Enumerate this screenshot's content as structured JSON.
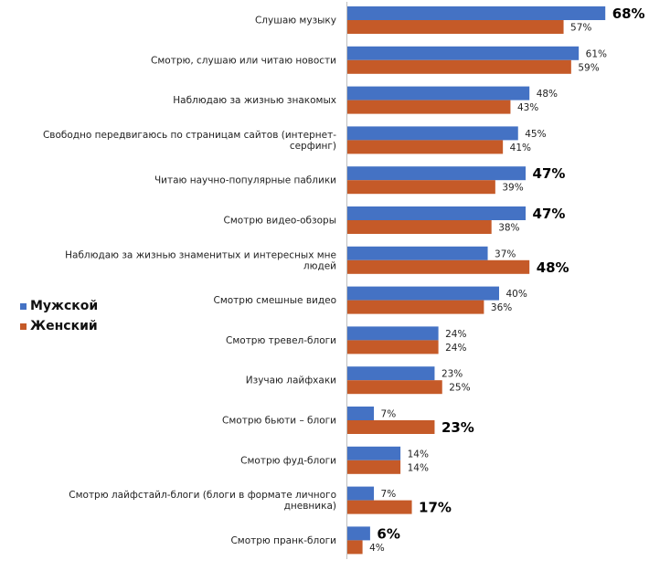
{
  "chart_data": {
    "type": "bar",
    "orientation": "horizontal",
    "title": "",
    "xlabel": "",
    "ylabel": "",
    "xlim": [
      0,
      100
    ],
    "grid": false,
    "legend_position": "left",
    "categories": [
      "Слушаю музыку",
      "Смотрю, слушаю или читаю новости",
      "Наблюдаю за жизнью знакомых",
      "Свободно передвигаюсь по страницам сайтов (интернет-серфинг)",
      "Читаю научно-популярные паблики",
      "Смотрю видео-обзоры",
      "Наблюдаю за жизнью знаменитых и интересных мне людей",
      "Смотрю смешные видео",
      "Смотрю тревел-блоги",
      "Изучаю лайфхаки",
      "Смотрю бьюти – блоги",
      "Смотрю фуд-блоги",
      "Смотрю лайфстайл-блоги (блоги в формате личного дневника)",
      "Смотрю пранк-блоги"
    ],
    "category_lines": [
      [
        "Слушаю музыку"
      ],
      [
        "Смотрю, слушаю или читаю новости"
      ],
      [
        "Наблюдаю за жизнью знакомых"
      ],
      [
        "Свободно передвигаюсь по страницам сайтов (интернет-",
        "серфинг)"
      ],
      [
        "Читаю научно-популярные паблики"
      ],
      [
        "Смотрю видео-обзоры"
      ],
      [
        "Наблюдаю за жизнью знаменитых и интересных мне",
        "людей"
      ],
      [
        "Смотрю смешные видео"
      ],
      [
        "Смотрю тревел-блоги"
      ],
      [
        "Изучаю лайфхаки"
      ],
      [
        "Смотрю бьюти – блоги"
      ],
      [
        "Смотрю фуд-блоги"
      ],
      [
        "Смотрю лайфстайл-блоги (блоги в формате личного",
        "дневника)"
      ],
      [
        "Смотрю пранк-блоги"
      ]
    ],
    "series": [
      {
        "name": "Мужской",
        "color": "#4472C4",
        "values": [
          68,
          61,
          48,
          45,
          47,
          47,
          37,
          40,
          24,
          23,
          7,
          14,
          7,
          6
        ],
        "labels": [
          "68%",
          "61%",
          "48%",
          "45%",
          "47%",
          "47%",
          "37%",
          "40%",
          "24%",
          "23%",
          "7%",
          "14%",
          "7%",
          "6%"
        ],
        "emphasized": [
          true,
          false,
          false,
          false,
          true,
          true,
          false,
          false,
          false,
          false,
          false,
          false,
          false,
          true
        ]
      },
      {
        "name": "Женский",
        "color": "#C55A28",
        "values": [
          57,
          59,
          43,
          41,
          39,
          38,
          48,
          36,
          24,
          25,
          23,
          14,
          17,
          4
        ],
        "labels": [
          "57%",
          "59%",
          "43%",
          "41%",
          "39%",
          "38%",
          "48%",
          "36%",
          "24%",
          "25%",
          "23%",
          "14%",
          "17%",
          "4%"
        ],
        "emphasized": [
          false,
          false,
          false,
          false,
          false,
          false,
          true,
          false,
          false,
          false,
          true,
          false,
          true,
          false
        ]
      }
    ]
  }
}
